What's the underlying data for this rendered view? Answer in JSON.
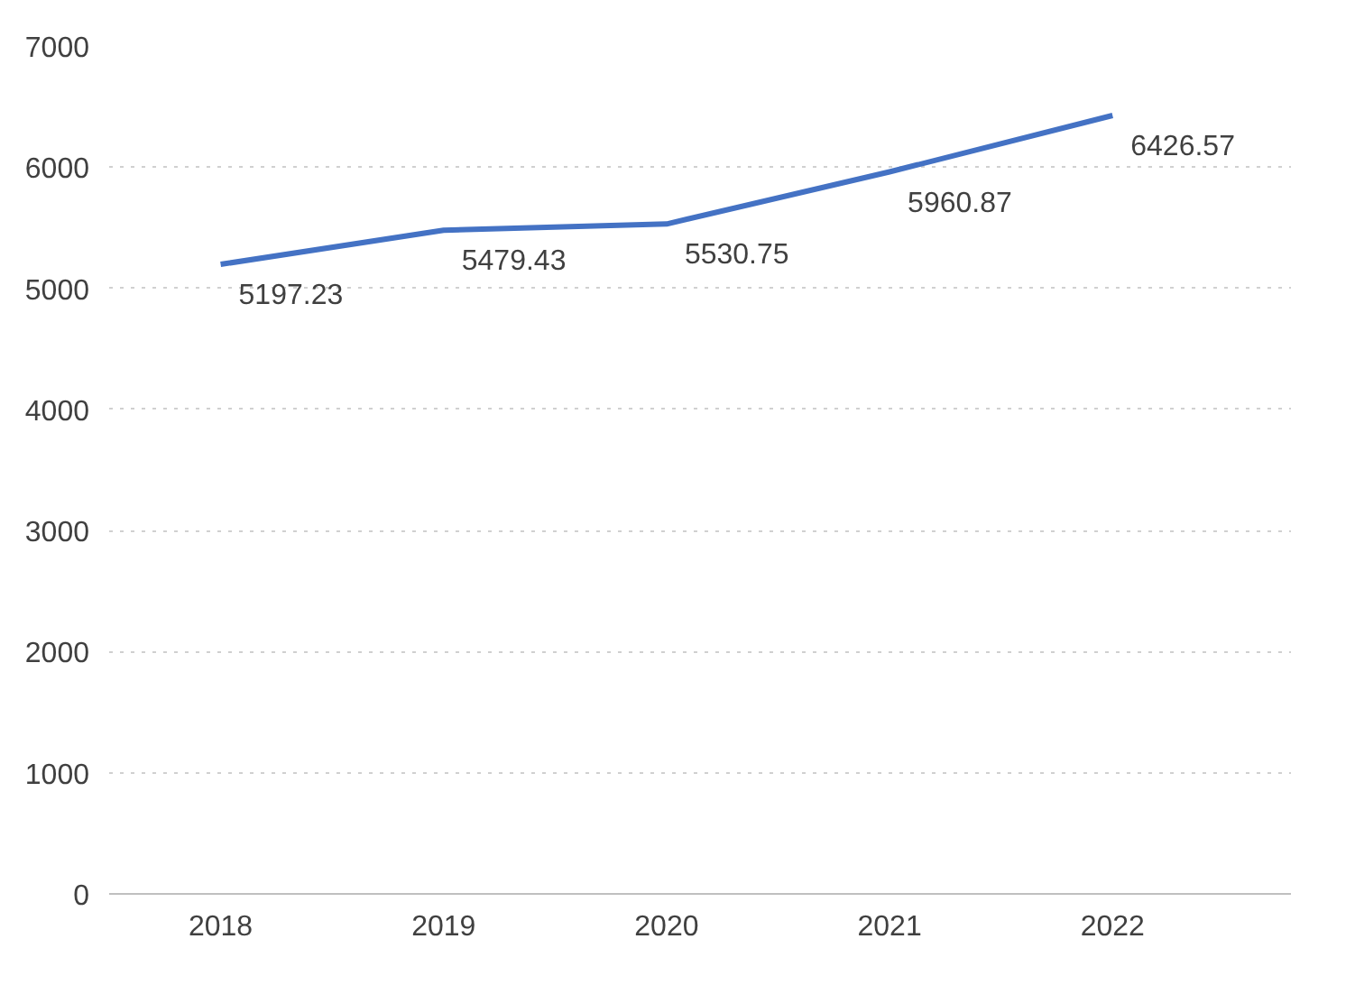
{
  "chart_data": {
    "type": "line",
    "categories": [
      "2018",
      "2019",
      "2020",
      "2021",
      "2022"
    ],
    "series": [
      {
        "color": "#4472c4",
        "values": [
          5197.23,
          5479.43,
          5530.75,
          5960.87,
          6426.57
        ]
      }
    ],
    "ylim": [
      0,
      7000
    ],
    "yticks": [
      0,
      1000,
      2000,
      3000,
      4000,
      5000,
      6000,
      7000
    ],
    "grid": "y",
    "data_labels": true,
    "marker": "none",
    "line_style": "solid"
  }
}
